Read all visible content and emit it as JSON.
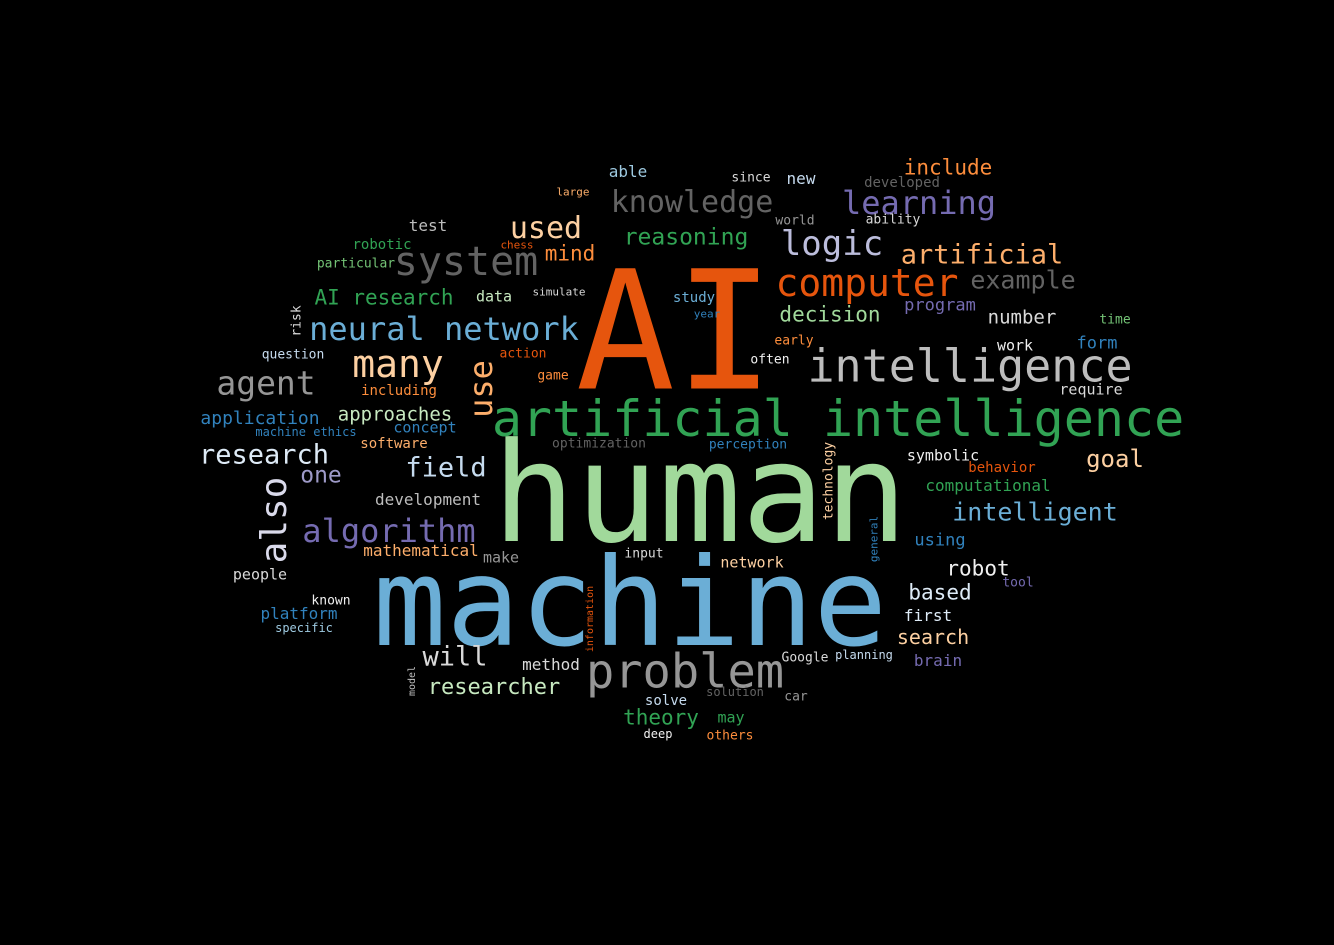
{
  "background": "#000000",
  "words": [
    {
      "text": "AI",
      "color": "#e6550d"
    },
    {
      "text": "human",
      "color": "#a1d99b"
    },
    {
      "text": "machine",
      "color": "#6baed6"
    },
    {
      "text": "artificial intelligence",
      "color": "#31a354"
    },
    {
      "text": "intelligence",
      "color": "#bdbdbd"
    },
    {
      "text": "problem",
      "color": "#969696"
    },
    {
      "text": "computer",
      "color": "#e6550d"
    },
    {
      "text": "system",
      "color": "#636363"
    },
    {
      "text": "neural network",
      "color": "#6baed6"
    },
    {
      "text": "many",
      "color": "#fdd0a2"
    },
    {
      "text": "also",
      "color": "#dadaeb"
    },
    {
      "text": "use",
      "color": "#fdae6b"
    },
    {
      "text": "logic",
      "color": "#bcbddc"
    },
    {
      "text": "knowledge",
      "color": "#636363"
    },
    {
      "text": "learning",
      "color": "#756bb1"
    },
    {
      "text": "agent",
      "color": "#969696"
    },
    {
      "text": "algorithm",
      "color": "#756bb1"
    },
    {
      "text": "used",
      "color": "#fdd0a2"
    },
    {
      "text": "artificial",
      "color": "#fdae6b"
    },
    {
      "text": "research",
      "color": "#deebf7"
    },
    {
      "text": "field",
      "color": "#c6dbef"
    },
    {
      "text": "will",
      "color": "#d9d9d9"
    },
    {
      "text": "example",
      "color": "#636363"
    },
    {
      "text": "intelligent",
      "color": "#6baed6"
    },
    {
      "text": "reasoning",
      "color": "#31a354"
    },
    {
      "text": "researcher",
      "color": "#c7e9c0"
    },
    {
      "text": "include",
      "color": "#fd8d3c"
    },
    {
      "text": "decision",
      "color": "#a1d99b"
    },
    {
      "text": "goal",
      "color": "#fdd0a2"
    },
    {
      "text": "one",
      "color": "#9e9ac8"
    },
    {
      "text": "theory",
      "color": "#31a354"
    },
    {
      "text": "AI research",
      "color": "#31a354"
    },
    {
      "text": "mind",
      "color": "#fd8d3c"
    },
    {
      "text": "robot",
      "color": "#f0f0f0"
    },
    {
      "text": "based",
      "color": "#deebf7"
    },
    {
      "text": "search",
      "color": "#fdd0a2"
    },
    {
      "text": "approaches",
      "color": "#c7e9c0"
    },
    {
      "text": "number",
      "color": "#d9d9d9"
    },
    {
      "text": "application",
      "color": "#3182bd"
    },
    {
      "text": "program",
      "color": "#756bb1"
    },
    {
      "text": "form",
      "color": "#3182bd"
    },
    {
      "text": "development",
      "color": "#bdbdbd"
    },
    {
      "text": "mathematical",
      "color": "#fdae6b"
    },
    {
      "text": "method",
      "color": "#d9d9d9"
    },
    {
      "text": "computational",
      "color": "#31a354"
    },
    {
      "text": "using",
      "color": "#3182bd"
    },
    {
      "text": "concept",
      "color": "#3182bd"
    },
    {
      "text": "data",
      "color": "#c7e9c0"
    },
    {
      "text": "platform",
      "color": "#3182bd"
    },
    {
      "text": "test",
      "color": "#bdbdbd"
    },
    {
      "text": "study",
      "color": "#6baed6"
    },
    {
      "text": "brain",
      "color": "#756bb1"
    },
    {
      "text": "symbolic",
      "color": "#f0f0f0"
    },
    {
      "text": "network",
      "color": "#fdd0a2"
    },
    {
      "text": "first",
      "color": "#deebf7"
    },
    {
      "text": "work",
      "color": "#f0f0f0"
    },
    {
      "text": "require",
      "color": "#d9d9d9"
    },
    {
      "text": "people",
      "color": "#d9d9d9"
    },
    {
      "text": "make",
      "color": "#969696"
    },
    {
      "text": "able",
      "color": "#9ecae1"
    },
    {
      "text": "new",
      "color": "#c6dbef"
    },
    {
      "text": "developed",
      "color": "#636363"
    },
    {
      "text": "solve",
      "color": "#c6dbef"
    },
    {
      "text": "may",
      "color": "#31a354"
    },
    {
      "text": "behavior",
      "color": "#e6550d"
    },
    {
      "text": "including",
      "color": "#fd8d3c"
    },
    {
      "text": "software",
      "color": "#fdae6b"
    },
    {
      "text": "others",
      "color": "#fd8d3c"
    },
    {
      "text": "question",
      "color": "#c6dbef"
    },
    {
      "text": "known",
      "color": "#f0f0f0"
    },
    {
      "text": "technology",
      "color": "#fdd0a2"
    },
    {
      "text": "robotic",
      "color": "#31a354"
    },
    {
      "text": "particular",
      "color": "#74c476"
    },
    {
      "text": "since",
      "color": "#d9d9d9"
    },
    {
      "text": "world",
      "color": "#969696"
    },
    {
      "text": "ability",
      "color": "#d9d9d9"
    },
    {
      "text": "time",
      "color": "#74c476"
    },
    {
      "text": "early",
      "color": "#fd8d3c"
    },
    {
      "text": "often",
      "color": "#f0f0f0"
    },
    {
      "text": "action",
      "color": "#e6550d"
    },
    {
      "text": "game",
      "color": "#fd8d3c"
    },
    {
      "text": "machine ethics",
      "color": "#3182bd"
    },
    {
      "text": "optimization",
      "color": "#636363"
    },
    {
      "text": "perception",
      "color": "#3182bd"
    },
    {
      "text": "input",
      "color": "#d9d9d9"
    },
    {
      "text": "specific",
      "color": "#9ecae1"
    },
    {
      "text": "Google",
      "color": "#d9d9d9"
    },
    {
      "text": "planning",
      "color": "#c6dbef"
    },
    {
      "text": "tool",
      "color": "#756bb1"
    },
    {
      "text": "solution",
      "color": "#636363"
    },
    {
      "text": "car",
      "color": "#969696"
    },
    {
      "text": "deep",
      "color": "#f0f0f0"
    },
    {
      "text": "large",
      "color": "#fdae6b"
    },
    {
      "text": "chess",
      "color": "#e6550d"
    },
    {
      "text": "simulate",
      "color": "#d9d9d9"
    },
    {
      "text": "year",
      "color": "#3182bd"
    },
    {
      "text": "risk",
      "color": "#d9d9d9"
    },
    {
      "text": "general",
      "color": "#3182bd"
    },
    {
      "text": "information",
      "color": "#e6550d"
    },
    {
      "text": "model",
      "color": "#bdbdbd"
    }
  ]
}
